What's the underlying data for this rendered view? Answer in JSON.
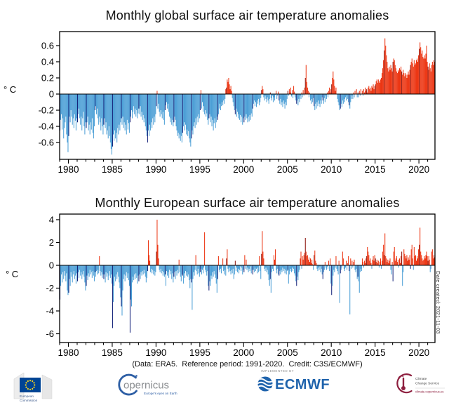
{
  "caption": "(Data: ERA5.  Reference period: 1991-2020.  Credit: C3S/ECMWF)",
  "date_note": "Date created: 2021-11-03",
  "footer": {
    "ec": {
      "line1": "European",
      "line2": "Commission"
    },
    "copernicus": {
      "wordmark": "opernicus",
      "tagline": "Europe's eyes on Earth"
    },
    "ecmwf": {
      "implemented_by": "IMPLEMENTED BY",
      "wordmark": "ECMWF"
    },
    "c3s": {
      "line1": "Climate",
      "line2": "Change Service",
      "url": "climate.copernicus.eu"
    }
  },
  "chart_data": [
    {
      "type": "bar",
      "title": "Monthly global surface air temperature anomalies",
      "ylabel": "° C",
      "frequency": "monthly",
      "x_start": "1979-01",
      "x_end": "2021-10",
      "start_year": 1979,
      "end_year": 2021,
      "ylim": [
        -0.81,
        0.78
      ],
      "yticks": [
        0.6,
        0.4,
        0.2,
        0,
        -0.2,
        -0.4,
        -0.6
      ],
      "xticks": [
        1980,
        1985,
        1990,
        1995,
        2000,
        2005,
        2010,
        2015,
        2020
      ],
      "grid": false,
      "legend": "none",
      "january_highlight": true,
      "colors": {
        "positive": "#EC3512",
        "negative": "#4C9FD6",
        "january_positive": "#8C140C",
        "january_negative": "#16247B"
      },
      "values": [
        -0.45,
        -0.32,
        -0.25,
        -0.44,
        -0.3,
        -0.55,
        -0.42,
        -0.35,
        -0.28,
        -0.5,
        -0.6,
        -0.72,
        -0.52,
        -0.28,
        -0.35,
        -0.2,
        -0.28,
        -0.38,
        -0.3,
        -0.42,
        -0.25,
        -0.33,
        -0.45,
        -0.3,
        -0.35,
        -0.25,
        -0.18,
        -0.3,
        -0.38,
        -0.28,
        -0.45,
        -0.3,
        -0.22,
        -0.4,
        -0.5,
        -0.35,
        -0.42,
        -0.35,
        -0.28,
        -0.45,
        -0.38,
        -0.5,
        -0.35,
        -0.44,
        -0.3,
        -0.48,
        -0.55,
        -0.4,
        -0.2,
        -0.15,
        -0.25,
        -0.18,
        -0.3,
        -0.38,
        -0.28,
        -0.35,
        -0.45,
        -0.3,
        -0.4,
        -0.5,
        -0.38,
        -0.3,
        -0.42,
        -0.35,
        -0.5,
        -0.45,
        -0.55,
        -0.4,
        -0.52,
        -0.6,
        -0.68,
        -0.75,
        -0.65,
        -0.5,
        -0.58,
        -0.45,
        -0.55,
        -0.48,
        -0.6,
        -0.42,
        -0.5,
        -0.38,
        -0.45,
        -0.35,
        -0.3,
        -0.38,
        -0.28,
        -0.42,
        -0.35,
        -0.45,
        -0.38,
        -0.5,
        -0.32,
        -0.44,
        -0.36,
        -0.48,
        -0.35,
        -0.28,
        -0.2,
        -0.3,
        -0.22,
        -0.15,
        -0.25,
        -0.18,
        -0.28,
        -0.2,
        -0.3,
        -0.24,
        -0.18,
        -0.25,
        -0.15,
        -0.28,
        -0.22,
        -0.32,
        -0.26,
        -0.35,
        -0.3,
        -0.4,
        -0.45,
        -0.52,
        -0.6,
        -0.45,
        -0.52,
        -0.38,
        -0.45,
        -0.35,
        -0.42,
        -0.3,
        -0.38,
        -0.28,
        -0.35,
        -0.25,
        -0.15,
        0.04,
        -0.18,
        -0.12,
        -0.22,
        -0.28,
        -0.2,
        -0.25,
        -0.3,
        -0.22,
        -0.32,
        -0.38,
        -0.2,
        -0.14,
        -0.1,
        -0.18,
        -0.12,
        -0.22,
        -0.28,
        -0.35,
        -0.3,
        -0.38,
        -0.32,
        -0.4,
        -0.35,
        -0.28,
        -0.32,
        -0.4,
        -0.45,
        -0.52,
        -0.48,
        -0.55,
        -0.5,
        -0.58,
        -0.52,
        -0.6,
        -0.48,
        -0.4,
        -0.35,
        -0.45,
        -0.38,
        -0.5,
        -0.44,
        -0.52,
        -0.46,
        -0.55,
        -0.6,
        -0.65,
        -0.55,
        -0.45,
        -0.5,
        -0.4,
        -0.35,
        -0.42,
        -0.3,
        -0.38,
        -0.28,
        -0.35,
        -0.25,
        -0.3,
        -0.2,
        0.05,
        -0.18,
        -0.1,
        -0.22,
        -0.15,
        -0.25,
        -0.2,
        -0.28,
        -0.24,
        -0.32,
        -0.38,
        -0.3,
        -0.25,
        -0.35,
        -0.28,
        -0.4,
        -0.32,
        -0.45,
        -0.36,
        -0.3,
        -0.42,
        -0.35,
        -0.28,
        -0.32,
        -0.25,
        -0.18,
        -0.12,
        -0.2,
        -0.15,
        -0.1,
        -0.14,
        -0.08,
        -0.12,
        -0.06,
        0.06,
        0.08,
        0.18,
        0.15,
        0.2,
        0.12,
        0.06,
        0.1,
        0.04,
        -0.05,
        -0.1,
        -0.15,
        -0.2,
        -0.25,
        -0.18,
        -0.28,
        -0.22,
        -0.3,
        -0.25,
        -0.32,
        -0.26,
        -0.35,
        -0.28,
        -0.38,
        -0.3,
        -0.35,
        -0.28,
        -0.32,
        -0.25,
        -0.3,
        -0.35,
        -0.28,
        -0.34,
        -0.26,
        -0.32,
        -0.24,
        -0.28,
        -0.18,
        -0.12,
        -0.08,
        -0.15,
        -0.1,
        -0.16,
        -0.08,
        -0.12,
        -0.06,
        -0.14,
        -0.1,
        -0.05,
        0.05,
        0.1,
        0.06,
        -0.04,
        -0.08,
        -0.02,
        -0.06,
        -0.1,
        -0.04,
        -0.08,
        -0.12,
        -0.06,
        0.02,
        -0.05,
        -0.08,
        -0.02,
        -0.1,
        -0.04,
        -0.08,
        -0.01,
        0.04,
        -0.06,
        -0.02,
        0.03,
        -0.08,
        -0.12,
        -0.06,
        -0.14,
        -0.1,
        -0.16,
        -0.08,
        -0.12,
        -0.18,
        -0.1,
        -0.14,
        -0.06,
        0.04,
        -0.02,
        0.06,
        0.02,
        0.08,
        -0.03,
        0.05,
        -0.05,
        0.1,
        0.03,
        -0.04,
        -0.08,
        -0.12,
        -0.08,
        -0.14,
        -0.06,
        -0.1,
        -0.02,
        -0.06,
        0.02,
        -0.04,
        0.05,
        -0.02,
        0.08,
        0.2,
        0.36,
        0.15,
        0.08,
        0.04,
        -0.04,
        0.02,
        -0.08,
        -0.12,
        -0.06,
        -0.1,
        -0.05,
        -0.15,
        -0.2,
        -0.12,
        -0.18,
        -0.1,
        -0.15,
        -0.08,
        -0.12,
        -0.16,
        -0.08,
        -0.12,
        -0.04,
        -0.08,
        -0.12,
        -0.05,
        -0.1,
        -0.02,
        -0.06,
        0.02,
        -0.04,
        0.04,
        0.08,
        0.02,
        0.06,
        0.12,
        0.2,
        0.28,
        0.18,
        0.1,
        0.04,
        0.08,
        0.0,
        -0.06,
        -0.1,
        -0.14,
        -0.2,
        -0.18,
        -0.12,
        -0.16,
        -0.08,
        -0.12,
        -0.06,
        -0.1,
        -0.04,
        -0.08,
        -0.02,
        -0.06,
        -0.1,
        -0.14,
        -0.18,
        -0.1,
        -0.06,
        -0.02,
        -0.06,
        0.02,
        -0.04,
        0.04,
        0.0,
        0.06,
        -0.04,
        0.02,
        -0.04,
        0.04,
        -0.02,
        0.06,
        0.0,
        0.04,
        -0.02,
        0.06,
        0.02,
        0.08,
        0.04,
        0.06,
        0.02,
        0.08,
        0.1,
        0.06,
        0.08,
        0.04,
        0.1,
        0.08,
        0.12,
        0.06,
        0.1,
        0.12,
        0.16,
        0.18,
        0.14,
        0.18,
        0.16,
        0.14,
        0.18,
        0.2,
        0.26,
        0.32,
        0.42,
        0.54,
        0.69,
        0.6,
        0.48,
        0.4,
        0.32,
        0.28,
        0.34,
        0.3,
        0.36,
        0.32,
        0.28,
        0.4,
        0.44,
        0.42,
        0.36,
        0.32,
        0.28,
        0.26,
        0.3,
        0.28,
        0.32,
        0.3,
        0.34,
        0.28,
        0.24,
        0.3,
        0.26,
        0.22,
        0.26,
        0.24,
        0.2,
        0.24,
        0.28,
        0.24,
        0.3,
        0.36,
        0.4,
        0.44,
        0.38,
        0.34,
        0.42,
        0.36,
        0.38,
        0.42,
        0.44,
        0.4,
        0.48,
        0.56,
        0.64,
        0.58,
        0.5,
        0.54,
        0.46,
        0.44,
        0.48,
        0.44,
        0.5,
        0.6,
        0.4,
        0.34,
        0.3,
        0.38,
        0.32,
        0.28,
        0.36,
        0.4,
        0.36,
        0.42,
        0.4
      ]
    },
    {
      "type": "bar",
      "title": "Monthly European surface air temperature anomalies",
      "ylabel": "° C",
      "frequency": "monthly",
      "x_start": "1979-01",
      "x_end": "2021-10",
      "start_year": 1979,
      "end_year": 2021,
      "ylim": [
        -6.9,
        4.5
      ],
      "yticks": [
        4,
        2,
        0,
        -2,
        -4,
        -6
      ],
      "xticks": [
        1980,
        1985,
        1990,
        1995,
        2000,
        2005,
        2010,
        2015,
        2020
      ],
      "grid": false,
      "legend": "none",
      "january_highlight": true,
      "colors": {
        "positive": "#EC3512",
        "negative": "#4C9FD6",
        "january_positive": "#8C140C",
        "january_negative": "#16247B"
      },
      "values": [
        -3.0,
        -1.8,
        -0.8,
        -1.5,
        -0.6,
        -1.2,
        -0.5,
        -0.9,
        -1.4,
        -0.7,
        -2.2,
        -2.6,
        -2.4,
        -1.2,
        -1.8,
        -0.6,
        -1.0,
        -1.5,
        -0.8,
        -0.5,
        -1.2,
        -0.9,
        -1.6,
        -0.7,
        -1.4,
        -0.6,
        -1.1,
        -0.4,
        -0.9,
        -0.6,
        -1.2,
        -0.8,
        -0.5,
        -1.0,
        -1.5,
        -2.2,
        -1.8,
        -0.9,
        -1.3,
        -0.7,
        -1.0,
        -0.4,
        -0.8,
        -0.6,
        -1.1,
        -0.5,
        -0.9,
        -1.4,
        -0.6,
        -1.0,
        -0.5,
        -0.8,
        -0.4,
        -0.7,
        0.8,
        -0.5,
        -0.9,
        -0.6,
        -1.1,
        -0.8,
        -1.2,
        -0.8,
        -1.5,
        -0.6,
        -1.0,
        -0.7,
        -1.3,
        -0.9,
        -0.5,
        -1.1,
        -0.8,
        -1.6,
        -5.5,
        -3.2,
        -1.8,
        -1.0,
        -1.4,
        -0.8,
        -1.2,
        -0.6,
        -1.0,
        -1.5,
        -2.0,
        -2.8,
        -3.6,
        -4.4,
        -2.2,
        -1.2,
        -0.8,
        -1.4,
        -0.9,
        -0.6,
        -1.1,
        -0.7,
        -1.3,
        -1.8,
        -5.9,
        -3.0,
        -3.6,
        -1.5,
        -1.0,
        -1.3,
        -0.8,
        -1.2,
        -0.7,
        -1.1,
        -1.6,
        -0.9,
        -1.4,
        -0.8,
        -1.2,
        -0.6,
        -0.9,
        -0.5,
        -0.8,
        -0.4,
        -0.7,
        -1.0,
        -1.5,
        -1.1,
        -0.5,
        2.2,
        0.9,
        0.4,
        -0.6,
        -0.3,
        -0.7,
        -0.4,
        -0.8,
        -0.5,
        -0.9,
        -0.6,
        1.2,
        4.0,
        1.8,
        0.6,
        -0.4,
        -0.6,
        -0.3,
        -0.7,
        -0.5,
        -0.9,
        -0.6,
        -1.0,
        -0.8,
        -1.8,
        -0.5,
        -0.9,
        -0.6,
        -1.1,
        -0.4,
        -0.8,
        -0.5,
        -1.2,
        -0.7,
        -1.5,
        -1.0,
        -0.6,
        -1.2,
        -0.5,
        -0.9,
        -0.4,
        -0.7,
        0.5,
        -0.6,
        -1.0,
        -1.4,
        -0.8,
        -0.9,
        -1.6,
        -0.7,
        -1.1,
        -0.5,
        -0.9,
        -0.6,
        -1.0,
        -0.8,
        -1.3,
        -2.0,
        -1.2,
        -1.5,
        -3.9,
        -1.2,
        -0.6,
        -0.9,
        -0.4,
        0.9,
        -0.5,
        -0.8,
        -0.3,
        -0.7,
        -1.0,
        -0.6,
        -0.3,
        -0.8,
        -0.4,
        -0.7,
        -0.2,
        2.9,
        -0.4,
        -0.6,
        -0.9,
        -0.5,
        -1.8,
        -2.2,
        -1.4,
        -1.8,
        -0.9,
        -1.2,
        -0.6,
        -1.0,
        -0.5,
        -0.8,
        -1.1,
        -1.6,
        -2.4,
        -1.2,
        0.8,
        -0.4,
        -0.6,
        -0.3,
        -0.7,
        -0.2,
        0.6,
        -0.5,
        -0.8,
        -0.4,
        -0.9,
        0.6,
        1.4,
        -0.3,
        -0.6,
        -0.2,
        -0.5,
        -0.8,
        -0.4,
        -0.7,
        -0.3,
        -1.2,
        -0.8,
        0.4,
        -0.5,
        -0.2,
        -0.6,
        -0.3,
        -0.7,
        -0.4,
        -0.1,
        -0.5,
        -0.2,
        -0.8,
        -0.4,
        -0.6,
        0.9,
        -0.3,
        0.5,
        -0.4,
        -0.2,
        -0.6,
        -0.3,
        -0.5,
        -0.1,
        -0.7,
        -0.4,
        -0.8,
        -0.4,
        -0.6,
        -0.2,
        -0.5,
        -0.3,
        -0.7,
        -0.2,
        -0.6,
        0.8,
        -0.5,
        -1.2,
        1.0,
        3.0,
        1.2,
        0.6,
        -0.3,
        -0.5,
        -0.2,
        -0.6,
        -0.4,
        -0.8,
        -1.3,
        -1.8,
        -1.2,
        -2.4,
        -0.6,
        -0.3,
        -0.5,
        0.9,
        0.5,
        1.4,
        -0.4,
        -0.7,
        -0.3,
        -0.8,
        -0.9,
        -0.5,
        -0.8,
        -0.4,
        -0.6,
        -0.2,
        -0.5,
        -0.3,
        -0.7,
        -0.4,
        -0.8,
        -0.5,
        -0.4,
        -1.6,
        -0.8,
        -0.5,
        -0.3,
        -0.6,
        -0.2,
        -0.5,
        -0.3,
        -0.7,
        -0.9,
        -1.4,
        -1.8,
        -1.0,
        -1.3,
        -0.6,
        -0.4,
        0.6,
        1.2,
        -0.3,
        0.8,
        0.5,
        0.9,
        1.1,
        2.4,
        1.2,
        0.8,
        0.9,
        0.5,
        0.7,
        0.3,
        0.6,
        0.2,
        0.5,
        0.1,
        -0.4,
        0.9,
        1.3,
        0.4,
        0.2,
        -0.3,
        -0.5,
        -0.2,
        -0.4,
        -0.1,
        -0.6,
        -0.3,
        -0.8,
        -1.2,
        -0.6,
        -0.4,
        0.3,
        -0.2,
        -0.4,
        -0.1,
        -0.3,
        0.4,
        -0.5,
        0.6,
        -1.6,
        -2.6,
        -1.8,
        -0.9,
        -0.4,
        -0.6,
        -0.2,
        0.8,
        -0.3,
        -0.5,
        -0.8,
        0.4,
        -3.3,
        -0.7,
        -0.4,
        -0.2,
        1.2,
        0.6,
        -0.3,
        -0.5,
        -0.2,
        0.4,
        -0.4,
        0.2,
        0.8,
        -0.5,
        -4.3,
        0.6,
        -0.3,
        0.4,
        -0.2,
        0.3,
        0.5,
        -0.4,
        -0.6,
        -0.3,
        -1.2,
        -1.0,
        -1.4,
        -2.4,
        -0.6,
        -0.3,
        -0.5,
        0.6,
        0.3,
        -0.2,
        0.4,
        0.2,
        0.6,
        0.8,
        1.6,
        1.2,
        0.9,
        0.4,
        0.6,
        0.2,
        -0.3,
        0.5,
        0.8,
        0.4,
        0.9,
        0.6,
        0.3,
        0.5,
        0.2,
        0.4,
        -0.2,
        0.3,
        0.6,
        -0.3,
        0.4,
        1.2,
        1.8,
        0.9,
        2.8,
        0.8,
        0.6,
        0.3,
        0.5,
        0.2,
        0.4,
        0.6,
        -0.4,
        -0.8,
        0.3,
        -1.4,
        1.2,
        1.6,
        0.4,
        0.6,
        0.8,
        0.3,
        0.5,
        -0.2,
        0.6,
        0.2,
        0.8,
        1.2,
        -1.8,
        -0.6,
        1.4,
        1.0,
        0.8,
        0.6,
        0.9,
        0.4,
        0.7,
        0.5,
        0.9,
        -0.3,
        1.4,
        1.8,
        0.6,
        -0.4,
        1.6,
        0.8,
        0.9,
        0.4,
        0.8,
        0.6,
        1.4,
        1.8,
        3.3,
        1.2,
        0.9,
        0.6,
        0.4,
        0.5,
        0.8,
        0.6,
        0.9,
        1.2,
        0.8,
        0.4,
        0.8,
        0.5,
        -0.6,
        -0.3,
        1.2,
        1.4,
        0.6,
        0.9,
        0.7
      ]
    }
  ]
}
